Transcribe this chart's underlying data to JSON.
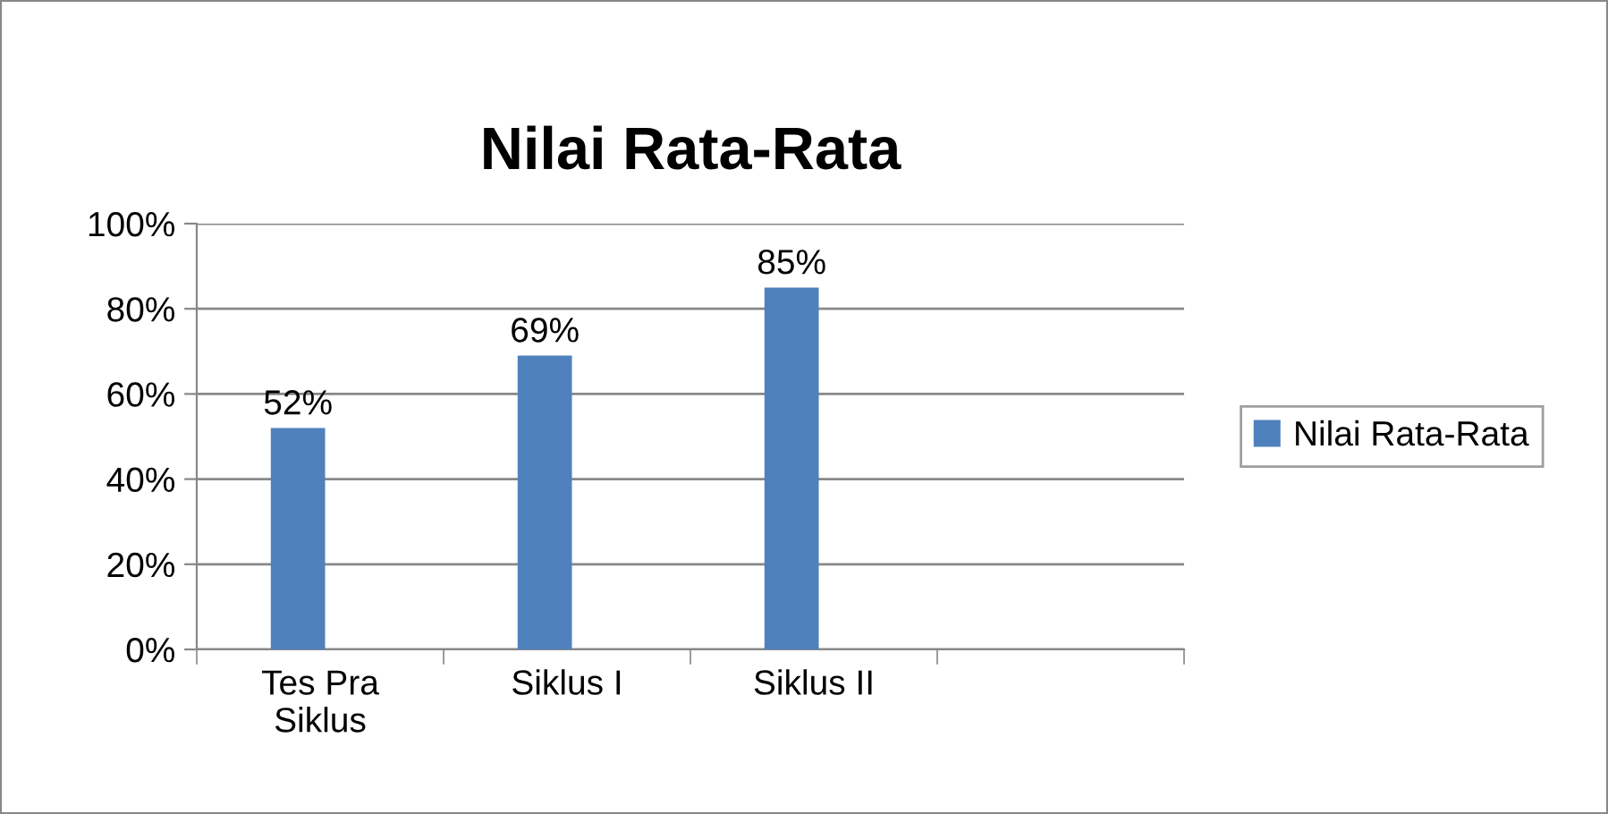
{
  "chart_data": {
    "type": "bar",
    "title": "Nilai Rata-Rata",
    "categories": [
      "Tes Pra\nSiklus",
      "Siklus I",
      "Siklus II",
      null
    ],
    "series": [
      {
        "name": "Nilai Rata-Rata",
        "color": "#4f81bd",
        "values": [
          52,
          69,
          85,
          null
        ],
        "value_labels": [
          "52%",
          "69%",
          "85%",
          null
        ]
      }
    ],
    "ylim": [
      0,
      100
    ],
    "yticks": [
      {
        "value": 0,
        "label": "0%"
      },
      {
        "value": 20,
        "label": "20%"
      },
      {
        "value": 40,
        "label": "40%"
      },
      {
        "value": 60,
        "label": "60%"
      },
      {
        "value": 80,
        "label": "80%"
      },
      {
        "value": 100,
        "label": "100%"
      }
    ],
    "grid": "y",
    "legend": "right"
  }
}
